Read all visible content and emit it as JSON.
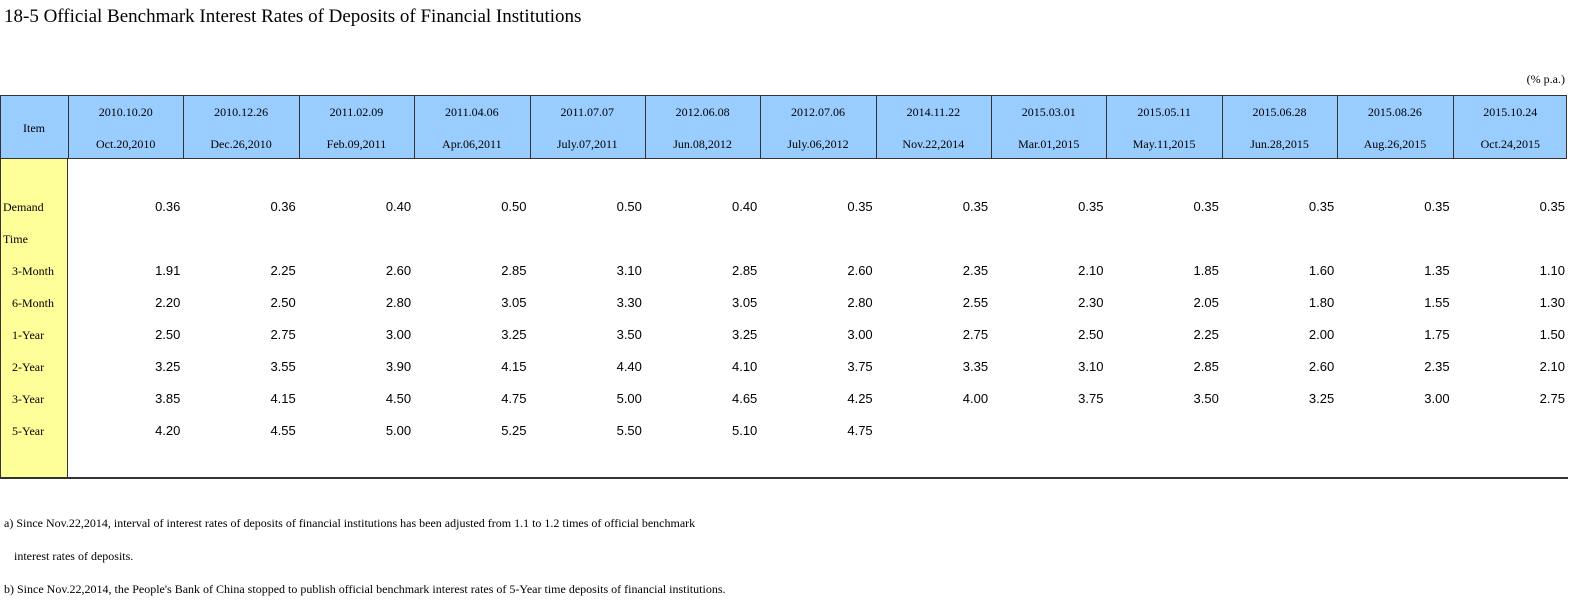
{
  "title": "18-5  Official Benchmark Interest Rates of Deposits of Financial Institutions",
  "unit": "(% p.a.)",
  "table": {
    "item_header": "Item",
    "columns": [
      {
        "date": "2010.10.20",
        "label": "Oct.20,2010"
      },
      {
        "date": "2010.12.26",
        "label": "Dec.26,2010"
      },
      {
        "date": "2011.02.09",
        "label": "Feb.09,2011"
      },
      {
        "date": "2011.04.06",
        "label": "Apr.06,2011"
      },
      {
        "date": "2011.07.07",
        "label": "July.07,2011"
      },
      {
        "date": "2012.06.08",
        "label": "Jun.08,2012"
      },
      {
        "date": "2012.07.06",
        "label": "July.06,2012"
      },
      {
        "date": "2014.11.22",
        "label": "Nov.22,2014"
      },
      {
        "date": "2015.03.01",
        "label": "Mar.01,2015"
      },
      {
        "date": "2015.05.11",
        "label": "May.11,2015"
      },
      {
        "date": "2015.06.28",
        "label": "Jun.28,2015"
      },
      {
        "date": "2015.08.26",
        "label": "Aug.26,2015"
      },
      {
        "date": "2015.10.24",
        "label": "Oct.24,2015"
      }
    ],
    "rows": [
      {
        "label": "Demand",
        "values": [
          "0.36",
          "0.36",
          "0.40",
          "0.50",
          "0.50",
          "0.40",
          "0.35",
          "0.35",
          "0.35",
          "0.35",
          "0.35",
          "0.35",
          "0.35"
        ]
      },
      {
        "label": "Time"
      },
      {
        "label": "3-Month",
        "values": [
          "1.91",
          "2.25",
          "2.60",
          "2.85",
          "3.10",
          "2.85",
          "2.60",
          "2.35",
          "2.10",
          "1.85",
          "1.60",
          "1.35",
          "1.10"
        ]
      },
      {
        "label": "6-Month",
        "values": [
          "2.20",
          "2.50",
          "2.80",
          "3.05",
          "3.30",
          "3.05",
          "2.80",
          "2.55",
          "2.30",
          "2.05",
          "1.80",
          "1.55",
          "1.30"
        ]
      },
      {
        "label": "1-Year",
        "values": [
          "2.50",
          "2.75",
          "3.00",
          "3.25",
          "3.50",
          "3.25",
          "3.00",
          "2.75",
          "2.50",
          "2.25",
          "2.00",
          "1.75",
          "1.50"
        ]
      },
      {
        "label": "2-Year",
        "values": [
          "3.25",
          "3.55",
          "3.90",
          "4.15",
          "4.40",
          "4.10",
          "3.75",
          "3.35",
          "3.10",
          "2.85",
          "2.60",
          "2.35",
          "2.10"
        ]
      },
      {
        "label": "3-Year",
        "values": [
          "3.85",
          "4.15",
          "4.50",
          "4.75",
          "5.00",
          "4.65",
          "4.25",
          "4.00",
          "3.75",
          "3.50",
          "3.25",
          "3.00",
          "2.75"
        ]
      },
      {
        "label": "5-Year",
        "values": [
          "4.20",
          "4.55",
          "5.00",
          "5.25",
          "5.50",
          "5.10",
          "4.75"
        ]
      }
    ]
  },
  "notes": [
    "a) Since Nov.22,2014, interval of interest rates of deposits of financial institutions has been adjusted from 1.1 to 1.2 times of official benchmark",
    "interest rates of deposits.",
    "b) Since Nov.22,2014, the People's Bank of China stopped to publish official benchmark interest rates of 5-Year time deposits of financial institutions."
  ]
}
